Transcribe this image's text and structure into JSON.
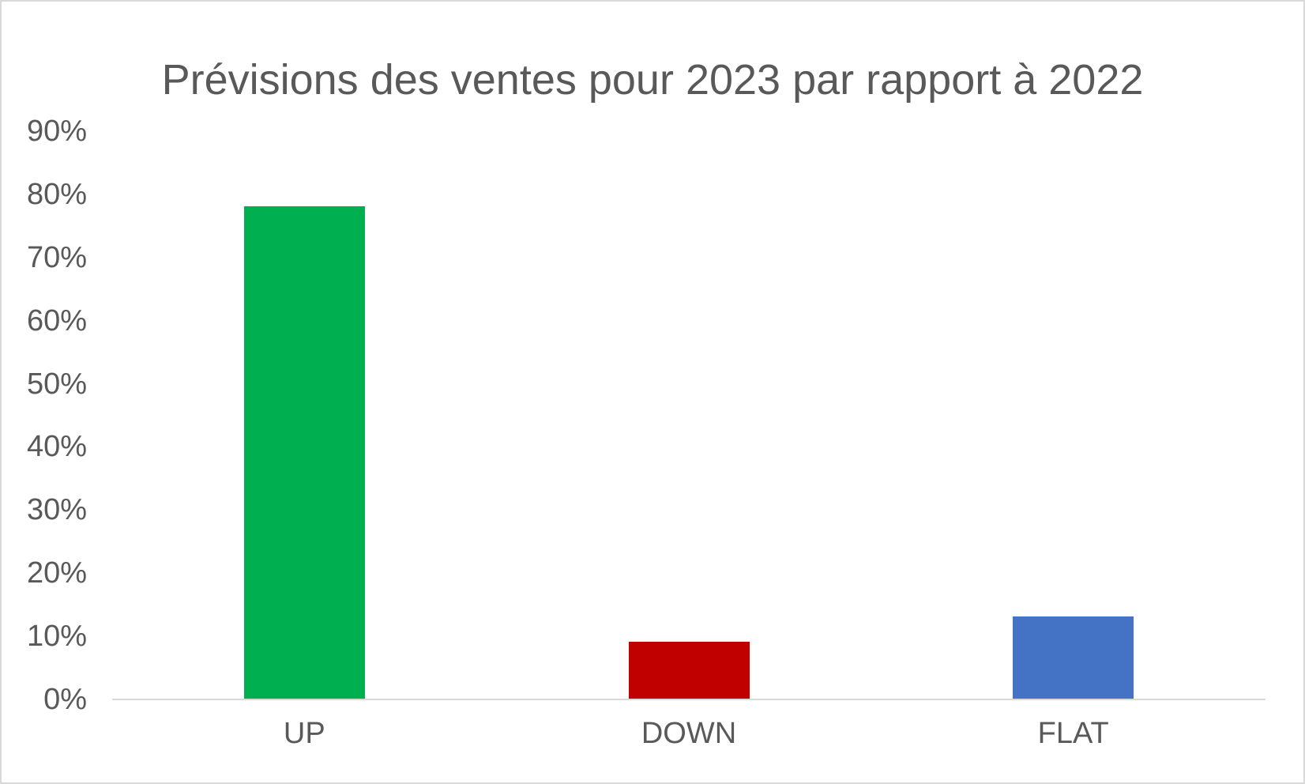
{
  "chart_data": {
    "type": "bar",
    "title": "Prévisions des ventes pour 2023 par rapport à 2022",
    "categories": [
      "UP",
      "DOWN",
      "FLAT"
    ],
    "values": [
      78,
      9,
      13
    ],
    "value_unit": "%",
    "bar_colors": [
      "#00B050",
      "#C00000",
      "#4472C4"
    ],
    "xlabel": "",
    "ylabel": "",
    "ylim": [
      0,
      90
    ],
    "ytick_step": 10,
    "ytick_labels": [
      "0%",
      "10%",
      "20%",
      "30%",
      "40%",
      "50%",
      "60%",
      "70%",
      "80%",
      "90%"
    ],
    "grid": false,
    "legend_position": "none",
    "text_color": "#595959",
    "axis_line_color": "#D9D9D9",
    "background_color": "#FFFFFF",
    "border_color": "#D9D9D9"
  }
}
